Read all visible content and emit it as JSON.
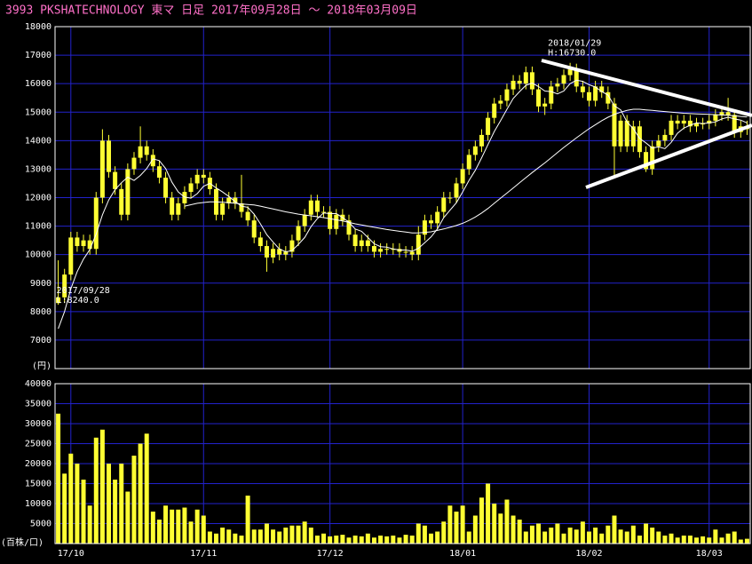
{
  "header": "3993 PKSHATECHNOLOGY 東マ 日足 2017年09月28日 〜 2018年03月09日",
  "chart_data": {
    "type": "candlestick",
    "ylim": [
      6000,
      18000
    ],
    "yticks": [
      7000,
      8000,
      9000,
      10000,
      11000,
      12000,
      13000,
      14000,
      15000,
      16000,
      17000,
      18000
    ],
    "y_unit": "(円)",
    "xticks": [
      {
        "value": 2,
        "label": "17/10"
      },
      {
        "value": 23,
        "label": "17/11"
      },
      {
        "value": 43,
        "label": "17/12"
      },
      {
        "value": 64,
        "label": "18/01"
      },
      {
        "value": 84,
        "label": "18/02"
      },
      {
        "value": 103,
        "label": "18/03"
      }
    ],
    "grid": true,
    "color": "#ffff33",
    "annotations": [
      {
        "text": "2018/01/29",
        "detail": "H:16730.0",
        "index": 81
      },
      {
        "text": "2017/09/28",
        "detail": "L:8240.0",
        "index": 0
      }
    ],
    "candles": [
      [
        8300,
        9800,
        8240,
        8500
      ],
      [
        8500,
        9500,
        8300,
        9300
      ],
      [
        9300,
        10800,
        9100,
        10600
      ],
      [
        10600,
        10800,
        10100,
        10300
      ],
      [
        10300,
        10700,
        10100,
        10500
      ],
      [
        10500,
        10700,
        10000,
        10200
      ],
      [
        10200,
        12200,
        10000,
        12000
      ],
      [
        12000,
        14400,
        11800,
        14000
      ],
      [
        14000,
        14200,
        12700,
        12900
      ],
      [
        12900,
        13100,
        12100,
        12300
      ],
      [
        12300,
        12500,
        11200,
        11400
      ],
      [
        11400,
        13200,
        11200,
        13000
      ],
      [
        13000,
        13600,
        12800,
        13400
      ],
      [
        13400,
        14500,
        13200,
        13800
      ],
      [
        13800,
        14000,
        13300,
        13500
      ],
      [
        13500,
        13700,
        12900,
        13100
      ],
      [
        13100,
        13300,
        12500,
        12700
      ],
      [
        12700,
        12900,
        11800,
        12000
      ],
      [
        12000,
        12200,
        11200,
        11400
      ],
      [
        11400,
        12000,
        11200,
        11800
      ],
      [
        11800,
        12400,
        11600,
        12200
      ],
      [
        12200,
        12700,
        12000,
        12500
      ],
      [
        12500,
        13000,
        12300,
        12800
      ],
      [
        12800,
        13000,
        12500,
        12700
      ],
      [
        12700,
        12900,
        12100,
        12300
      ],
      [
        12300,
        12500,
        11200,
        11400
      ],
      [
        11400,
        12000,
        11200,
        11800
      ],
      [
        11800,
        12200,
        11600,
        12000
      ],
      [
        12000,
        12200,
        11600,
        11800
      ],
      [
        11800,
        12800,
        11300,
        11500
      ],
      [
        11500,
        11700,
        11000,
        11200
      ],
      [
        11200,
        11400,
        10400,
        10600
      ],
      [
        10600,
        10800,
        10100,
        10300
      ],
      [
        10300,
        10500,
        9400,
        9900
      ],
      [
        9900,
        10400,
        9700,
        10200
      ],
      [
        10200,
        10400,
        9800,
        10000
      ],
      [
        10000,
        10300,
        9800,
        10100
      ],
      [
        10100,
        10700,
        9900,
        10500
      ],
      [
        10500,
        11200,
        10300,
        11000
      ],
      [
        11000,
        11600,
        10800,
        11400
      ],
      [
        11400,
        12100,
        11200,
        11900
      ],
      [
        11900,
        12100,
        11300,
        11500
      ],
      [
        11500,
        11700,
        11300,
        11500
      ],
      [
        11500,
        11700,
        10700,
        10900
      ],
      [
        10900,
        11600,
        10700,
        11400
      ],
      [
        11400,
        11600,
        11000,
        11200
      ],
      [
        11200,
        11400,
        10500,
        10700
      ],
      [
        10700,
        10900,
        10100,
        10300
      ],
      [
        10300,
        10700,
        10100,
        10500
      ],
      [
        10500,
        10700,
        10100,
        10300
      ],
      [
        10300,
        10500,
        9900,
        10100
      ],
      [
        10100,
        10400,
        9900,
        10200
      ],
      [
        10200,
        10400,
        10000,
        10200
      ],
      [
        10200,
        10400,
        10000,
        10200
      ],
      [
        10200,
        10400,
        9900,
        10100
      ],
      [
        10100,
        10300,
        9900,
        10100
      ],
      [
        10100,
        10300,
        9800,
        10000
      ],
      [
        10000,
        11000,
        9800,
        10700
      ],
      [
        10700,
        11400,
        10500,
        11200
      ],
      [
        11200,
        11400,
        10900,
        11100
      ],
      [
        11100,
        11700,
        10900,
        11500
      ],
      [
        11500,
        12200,
        11300,
        12000
      ],
      [
        12000,
        12200,
        11800,
        12000
      ],
      [
        12000,
        12700,
        11800,
        12500
      ],
      [
        12500,
        13200,
        12300,
        13000
      ],
      [
        13000,
        13700,
        12800,
        13500
      ],
      [
        13500,
        14000,
        13300,
        13800
      ],
      [
        13800,
        14400,
        13600,
        14200
      ],
      [
        14200,
        15000,
        14000,
        14800
      ],
      [
        14800,
        15500,
        14600,
        15300
      ],
      [
        15300,
        15600,
        15100,
        15400
      ],
      [
        15400,
        16000,
        15200,
        15800
      ],
      [
        15800,
        16300,
        15600,
        16100
      ],
      [
        16100,
        16300,
        15800,
        16000
      ],
      [
        16000,
        16600,
        15800,
        16400
      ],
      [
        16400,
        16600,
        15600,
        15800
      ],
      [
        15800,
        16000,
        15000,
        15200
      ],
      [
        15200,
        15500,
        14900,
        15300
      ],
      [
        15300,
        16100,
        15100,
        15900
      ],
      [
        15900,
        16200,
        15700,
        16000
      ],
      [
        16000,
        16500,
        15800,
        16300
      ],
      [
        16300,
        16730,
        16100,
        16500
      ],
      [
        16500,
        16700,
        15700,
        15900
      ],
      [
        15900,
        16100,
        15500,
        15700
      ],
      [
        15700,
        15900,
        15200,
        15400
      ],
      [
        15400,
        16100,
        15200,
        15900
      ],
      [
        15900,
        16100,
        15500,
        15700
      ],
      [
        15700,
        15900,
        15100,
        15300
      ],
      [
        15300,
        15500,
        12700,
        13800
      ],
      [
        13800,
        14900,
        13600,
        14700
      ],
      [
        14700,
        14900,
        13600,
        13800
      ],
      [
        13800,
        14700,
        13600,
        14500
      ],
      [
        14500,
        14700,
        13400,
        13600
      ],
      [
        13600,
        13800,
        12900,
        13000
      ],
      [
        13000,
        14000,
        12800,
        13800
      ],
      [
        13800,
        14200,
        13600,
        14000
      ],
      [
        14000,
        14400,
        13800,
        14200
      ],
      [
        14200,
        14900,
        14000,
        14700
      ],
      [
        14700,
        14900,
        14400,
        14600
      ],
      [
        14600,
        14900,
        14400,
        14700
      ],
      [
        14700,
        14900,
        14300,
        14500
      ],
      [
        14500,
        14800,
        14300,
        14600
      ],
      [
        14600,
        14800,
        14400,
        14600
      ],
      [
        14600,
        14900,
        14400,
        14700
      ],
      [
        14700,
        15100,
        14500,
        14900
      ],
      [
        14900,
        15200,
        14700,
        15000
      ],
      [
        15000,
        15500,
        14700,
        14900
      ],
      [
        14900,
        15100,
        14100,
        14300
      ],
      [
        14300,
        14700,
        14100,
        14500
      ],
      [
        14500,
        14700,
        14200,
        14400
      ]
    ],
    "ma_short": [
      7400,
      8000,
      8800,
      9400,
      9840,
      10180,
      10720,
      11400,
      11920,
      12280,
      12520,
      12720,
      12600,
      12780,
      13020,
      13360,
      13300,
      13020,
      12540,
      12200,
      12020,
      11980,
      12140,
      12400,
      12500,
      12340,
      12200,
      12040,
      11860,
      11700,
      11660,
      11420,
      11080,
      10700,
      10440,
      10200,
      10100,
      10140,
      10360,
      10600,
      10980,
      11260,
      11460,
      11440,
      11440,
      11300,
      11140,
      10900,
      10820,
      10600,
      10380,
      10280,
      10260,
      10200,
      10160,
      10160,
      10120,
      10220,
      10420,
      10620,
      10900,
      11300,
      11560,
      11820,
      12200,
      12600,
      12960,
      13400,
      13860,
      14320,
      14700,
      15100,
      15480,
      15720,
      15940,
      16020,
      15900,
      15740,
      15720,
      15640,
      15740,
      16000,
      16120,
      16080,
      15960,
      15880,
      15720,
      15600,
      15220,
      15080,
      14660,
      14420,
      14080,
      13920,
      13740,
      13780,
      13720,
      13940,
      14260,
      14440,
      14540,
      14620,
      14600,
      14620,
      14660,
      14760,
      14820,
      14760,
      14720,
      14620
    ],
    "ma_long": [
      null,
      null,
      null,
      null,
      null,
      null,
      null,
      null,
      null,
      null,
      null,
      null,
      null,
      null,
      null,
      null,
      null,
      null,
      null,
      null,
      11700,
      11750,
      11800,
      11830,
      11850,
      11850,
      11840,
      11820,
      11800,
      11780,
      11760,
      11740,
      11700,
      11650,
      11600,
      11550,
      11500,
      11460,
      11420,
      11390,
      11360,
      11330,
      11300,
      11260,
      11220,
      11180,
      11130,
      11080,
      11040,
      11000,
      10960,
      10920,
      10880,
      10850,
      10820,
      10790,
      10760,
      10760,
      10780,
      10800,
      10850,
      10900,
      10960,
      11020,
      11100,
      11200,
      11320,
      11460,
      11620,
      11800,
      11980,
      12160,
      12340,
      12520,
      12700,
      12880,
      13050,
      13220,
      13400,
      13580,
      13760,
      13930,
      14100,
      14260,
      14420,
      14560,
      14700,
      14820,
      14920,
      15000,
      15060,
      15100,
      15100,
      15080,
      15060,
      15040,
      15020,
      15000,
      14980,
      14960,
      14950,
      14940,
      14930,
      14920,
      14910,
      14900,
      14890,
      14870,
      14850,
      14830
    ],
    "volume": {
      "ylim": [
        0,
        40000
      ],
      "yticks": [
        5000,
        10000,
        15000,
        20000,
        25000,
        30000,
        35000,
        40000
      ],
      "y_unit": "(百株/口)",
      "values": [
        32500,
        17500,
        22500,
        20000,
        16000,
        9500,
        26500,
        28500,
        20000,
        16000,
        20000,
        13000,
        22000,
        25000,
        27500,
        8000,
        6000,
        9500,
        8500,
        8500,
        9000,
        5500,
        8500,
        7000,
        3000,
        2500,
        4000,
        3500,
        2500,
        2000,
        12000,
        3500,
        3500,
        5000,
        3500,
        3000,
        4000,
        4500,
        4500,
        5500,
        4000,
        2000,
        2500,
        1800,
        2000,
        2200,
        1500,
        2000,
        1800,
        2500,
        1500,
        2000,
        1800,
        2000,
        1500,
        2200,
        2000,
        5000,
        4500,
        2500,
        3000,
        5500,
        9500,
        8000,
        9500,
        3000,
        7000,
        11500,
        15000,
        10000,
        7500,
        11000,
        7000,
        6000,
        3000,
        4500,
        5000,
        3000,
        4000,
        5000,
        2500,
        4000,
        3500,
        5500,
        3000,
        4000,
        2500,
        4500,
        7000,
        3500,
        3000,
        4500,
        2000,
        5000,
        4000,
        3000,
        2000,
        2500,
        1500,
        2000,
        2000,
        1500,
        1800,
        1500,
        3500,
        1500,
        2500,
        3000,
        1000,
        1200
      ]
    }
  }
}
